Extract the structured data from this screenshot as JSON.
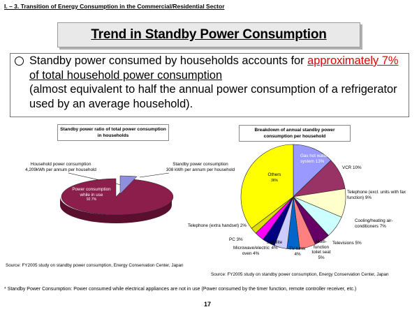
{
  "section_heading": "I. – 3. Transition of Energy Consumption in the Commercial/Residential Sector",
  "title": "Trend in Standby Power Consumption",
  "bullet": {
    "part1": "Standby power consumed by households accounts for ",
    "highlight": "approximately 7%",
    "part2": " of total household power consumption",
    "part3": "(almost equivalent to half the annual power consumption of a refrigerator used by an average household)."
  },
  "colors": {
    "pie_main": "#8b1e4a",
    "pie_standby": "#8f8fe0",
    "accent_red": "#e00000"
  },
  "left_chart": {
    "header": "Standby power ratio of total power consumption in households",
    "household_label": "Household power consumption",
    "household_value": "4,209kWh per annum per household",
    "standby_label": "Standby power consumption",
    "standby_value": "308 kWh per annum per household",
    "in_use_label": "Power consumption while in use",
    "in_use_pct": "92.7%",
    "standby_pct": "7.3%",
    "source": "Source: FY2005 study on standby power consumption, Energy Conservation Center, Japan"
  },
  "right_chart": {
    "header": "Breakdown of annual standby power consumption per household",
    "source": "Source: FY2005 study on standby power consumption, Energy Conservation Center, Japan"
  },
  "chart_data": [
    {
      "type": "pie",
      "title": "Standby power ratio of total power consumption in households",
      "labels": [
        "Power consumption while in use",
        "Standby"
      ],
      "values": [
        92.7,
        7.3
      ]
    },
    {
      "type": "pie",
      "title": "Breakdown of annual standby power consumption per household",
      "labels": [
        "Gas hot water system",
        "VCR",
        "Telephone (excl. units with fax function)",
        "Cooling/heating air-conditioners",
        "Televisions",
        "Multi-function toilet seat",
        "TV tuner",
        "Satellite",
        "Microwave/electric oven",
        "PC",
        "Telephone (extra handset)",
        "Others"
      ],
      "values": [
        13,
        10,
        9,
        7,
        5,
        5,
        4,
        4,
        4,
        3,
        2,
        36
      ],
      "colors": [
        "#9999ff",
        "#993366",
        "#ffffcc",
        "#ccffff",
        "#660066",
        "#ff8080",
        "#0066cc",
        "#ccccff",
        "#000080",
        "#ff00ff",
        "#dddd00",
        "#ffff00"
      ],
      "display_labels": [
        {
          "name": "Gas hot water system",
          "pct": "13%"
        },
        {
          "name": "VCR",
          "pct": "10%"
        },
        {
          "name": "Telephone (excl. units with fax function)",
          "pct": "9%"
        },
        {
          "name": "Cooling/heating air-conditioners",
          "pct": "7%"
        },
        {
          "name": "Televisions",
          "pct": "5%"
        },
        {
          "name": "Multi-function toilet seat",
          "pct": "5%"
        },
        {
          "name": "TV tuner",
          "pct": "4%"
        },
        {
          "name": "Satellite",
          "pct": "4%"
        },
        {
          "name": "Microwave/electric oven",
          "pct": "4%"
        },
        {
          "name": "PC",
          "pct": "3%"
        },
        {
          "name": "Telephone (extra handset)",
          "pct": "2%"
        },
        {
          "name": "Others",
          "pct": "36%"
        }
      ]
    }
  ],
  "footnote": "* Standby Power Consumption: Power consumed while electrical appliances are not in use (Power consumed by the timer function, remote controller receiver, etc.)",
  "page_number": "17"
}
